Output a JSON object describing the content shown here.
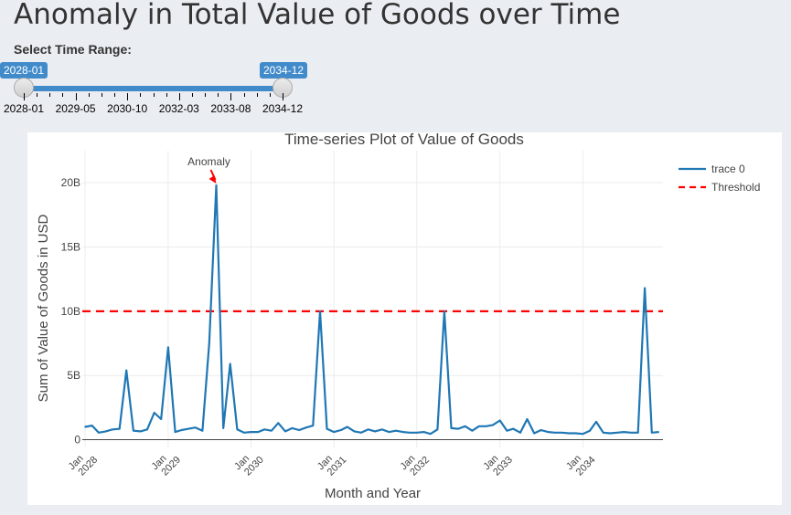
{
  "page": {
    "title": "Anomaly in Total Value of Goods over Time",
    "range_label": "Select Time Range:"
  },
  "slider": {
    "from": "2028-01",
    "to": "2034-12",
    "ticks": [
      "2028-01",
      "2029-05",
      "2030-10",
      "2032-03",
      "2033-08",
      "2034-12"
    ],
    "accent_color": "#428bca",
    "selected_fraction": [
      0,
      1
    ]
  },
  "chart_data": {
    "type": "line",
    "title": "Time-series Plot of Value of Goods",
    "xlabel": "Month and Year",
    "ylabel": "Sum of Value of Goods in USD",
    "y_unit": "USD",
    "ylim": [
      -600000000,
      22500000000
    ],
    "xlim": [
      "2027-12-20",
      "2034-12-20"
    ],
    "y_ticks": [
      {
        "value": 0,
        "label": "0"
      },
      {
        "value": 5000000000,
        "label": "5B"
      },
      {
        "value": 10000000000,
        "label": "10B"
      },
      {
        "value": 15000000000,
        "label": "15B"
      },
      {
        "value": 20000000000,
        "label": "20B"
      }
    ],
    "x_ticks": [
      {
        "date": "2028-01-01",
        "line1": "Jan",
        "line2": "2028"
      },
      {
        "date": "2029-01-01",
        "line1": "Jan",
        "line2": "2029"
      },
      {
        "date": "2030-01-01",
        "line1": "Jan",
        "line2": "2030"
      },
      {
        "date": "2031-01-01",
        "line1": "Jan",
        "line2": "2031"
      },
      {
        "date": "2032-01-01",
        "line1": "Jan",
        "line2": "2032"
      },
      {
        "date": "2033-01-01",
        "line1": "Jan",
        "line2": "2033"
      },
      {
        "date": "2034-01-01",
        "line1": "Jan",
        "line2": "2034"
      }
    ],
    "grid": true,
    "legend_position": "top-right",
    "series": [
      {
        "name": "trace 0",
        "color": "#1f77b4",
        "x": [
          "2028-01",
          "2028-02",
          "2028-03",
          "2028-04",
          "2028-05",
          "2028-06",
          "2028-07",
          "2028-08",
          "2028-09",
          "2028-10",
          "2028-11",
          "2028-12",
          "2029-01",
          "2029-02",
          "2029-03",
          "2029-04",
          "2029-05",
          "2029-06",
          "2029-07",
          "2029-08",
          "2029-09",
          "2029-10",
          "2029-11",
          "2029-12",
          "2030-01",
          "2030-02",
          "2030-03",
          "2030-04",
          "2030-05",
          "2030-06",
          "2030-07",
          "2030-08",
          "2030-09",
          "2030-10",
          "2030-11",
          "2030-12",
          "2031-01",
          "2031-02",
          "2031-03",
          "2031-04",
          "2031-05",
          "2031-06",
          "2031-07",
          "2031-08",
          "2031-09",
          "2031-10",
          "2031-11",
          "2031-12",
          "2032-01",
          "2032-02",
          "2032-03",
          "2032-04",
          "2032-05",
          "2032-06",
          "2032-07",
          "2032-08",
          "2032-09",
          "2032-10",
          "2032-11",
          "2032-12",
          "2033-01",
          "2033-02",
          "2033-03",
          "2033-04",
          "2033-05",
          "2033-06",
          "2033-07",
          "2033-08",
          "2033-09",
          "2033-10",
          "2033-11",
          "2033-12",
          "2034-01",
          "2034-02",
          "2034-03",
          "2034-04",
          "2034-05",
          "2034-06",
          "2034-07",
          "2034-08",
          "2034-09",
          "2034-10",
          "2034-11",
          "2034-12"
        ],
        "values": [
          1.0,
          1.1,
          0.55,
          0.65,
          0.8,
          0.85,
          5.4,
          0.7,
          0.65,
          0.8,
          2.1,
          1.6,
          7.2,
          0.6,
          0.75,
          0.85,
          0.95,
          0.7,
          7.5,
          19.8,
          0.9,
          5.9,
          0.8,
          0.55,
          0.6,
          0.6,
          0.8,
          0.7,
          1.3,
          0.65,
          0.9,
          0.75,
          0.95,
          1.1,
          10.0,
          0.85,
          0.6,
          0.75,
          1.0,
          0.65,
          0.55,
          0.8,
          0.65,
          0.8,
          0.6,
          0.7,
          0.6,
          0.55,
          0.55,
          0.6,
          0.45,
          0.8,
          10.0,
          0.9,
          0.85,
          1.05,
          0.7,
          1.05,
          1.05,
          1.15,
          1.5,
          0.7,
          0.85,
          0.55,
          1.6,
          0.5,
          0.75,
          0.6,
          0.55,
          0.55,
          0.5,
          0.5,
          0.45,
          0.7,
          1.4,
          0.55,
          0.5,
          0.55,
          0.6,
          0.55,
          0.55,
          11.8,
          0.55,
          0.6
        ],
        "values_unit": "billion USD"
      },
      {
        "name": "Threshold",
        "color": "#ff0000",
        "dash": "dashed",
        "value": 10000000000
      }
    ],
    "annotations": [
      {
        "text": "Anomaly",
        "x": "2029-08",
        "y": 19800000000,
        "arrow_color": "#ff0000"
      }
    ]
  }
}
